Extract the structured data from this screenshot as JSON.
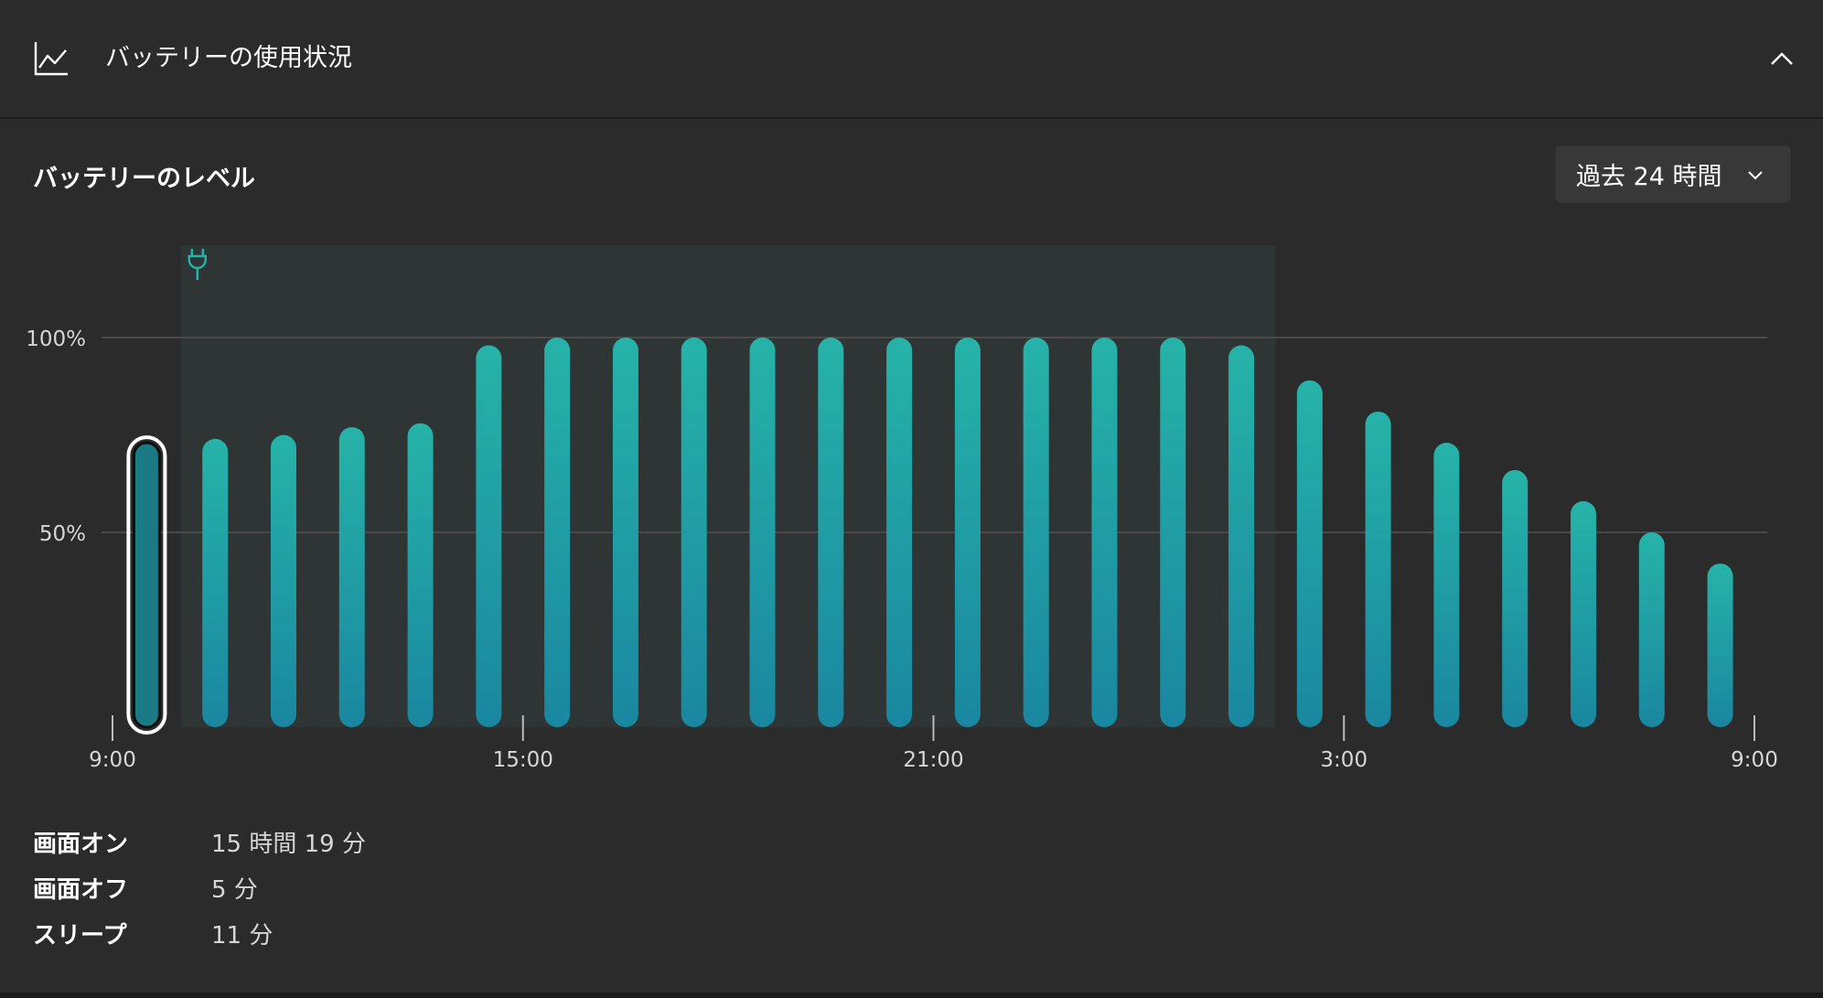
{
  "header": {
    "title": "バッテリーの使用状況",
    "icon": "line-chart-icon",
    "collapse_icon": "chevron-up-icon"
  },
  "level": {
    "title": "バッテリーのレベル"
  },
  "range_select": {
    "value": "過去 24 時間",
    "icon": "chevron-down-icon"
  },
  "chart_data": {
    "type": "bar",
    "xlabel": "",
    "ylabel": "",
    "ylim": [
      0,
      100
    ],
    "ytick_labels": [
      "100%",
      "50%"
    ],
    "ytick_values": [
      100,
      50
    ],
    "xtick_labels": [
      "9:00",
      "15:00",
      "21:00",
      "3:00",
      "9:00"
    ],
    "xtick_hours": [
      0,
      6,
      12,
      18,
      24
    ],
    "bar_hours": [
      0.5,
      1.5,
      2.5,
      3.5,
      4.5,
      5.5,
      6.5,
      7.5,
      8.5,
      9.5,
      10.5,
      11.5,
      12.5,
      13.5,
      14.5,
      15.5,
      16.5,
      17.5,
      18.5,
      19.5,
      20.5,
      21.5,
      22.5,
      23.5
    ],
    "values": [
      73,
      74,
      75,
      77,
      78,
      98,
      100,
      100,
      100,
      100,
      100,
      100,
      100,
      100,
      100,
      100,
      98,
      89,
      81,
      73,
      66,
      58,
      50,
      42
    ],
    "selected_index": 0,
    "charging_hours": [
      1,
      17
    ],
    "charging_icon": "plug-icon",
    "colors": {
      "bar_top": "#26b3a8",
      "bar_bottom": "#1a87a0",
      "selected_fill": "#1b7a84",
      "charging_band": "#2e3534",
      "grid": "#4a4a4a",
      "axis": "#bbbbbb"
    }
  },
  "stats": [
    {
      "label": "画面オン",
      "value": "15 時間 19 分"
    },
    {
      "label": "画面オフ",
      "value": "5 分"
    },
    {
      "label": "スリープ",
      "value": "11 分"
    }
  ]
}
